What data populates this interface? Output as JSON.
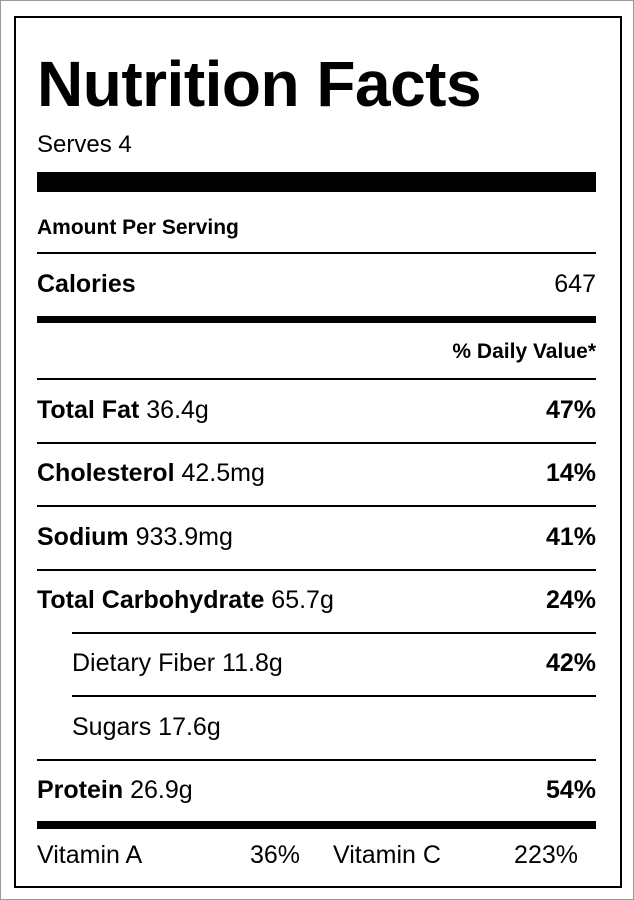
{
  "title": "Nutrition Facts",
  "serves": "Serves 4",
  "amount_per_serving": "Amount Per Serving",
  "calories": {
    "label": "Calories",
    "value": 647
  },
  "daily_value_header": "% Daily Value*",
  "nutrients": [
    {
      "name": "Total Fat",
      "amount": "36.4g",
      "daily_value": "47%",
      "indent": false
    },
    {
      "name": "Cholesterol",
      "amount": "42.5mg",
      "daily_value": "14%",
      "indent": false
    },
    {
      "name": "Sodium",
      "amount": "933.9mg",
      "daily_value": "41%",
      "indent": false
    },
    {
      "name": "Total Carbohydrate",
      "amount": "65.7g",
      "daily_value": "24%",
      "indent": false
    },
    {
      "name": "Dietary Fiber",
      "amount": "11.8g",
      "daily_value": "42%",
      "indent": true
    },
    {
      "name": "Sugars",
      "amount": "17.6g",
      "indent": true
    },
    {
      "name": "Protein",
      "amount": "26.9g",
      "daily_value": "54%",
      "indent": false
    }
  ],
  "vitamins": [
    {
      "name": "Vitamin A",
      "value": "36%"
    },
    {
      "name": "Vitamin C",
      "value": "223%"
    }
  ]
}
